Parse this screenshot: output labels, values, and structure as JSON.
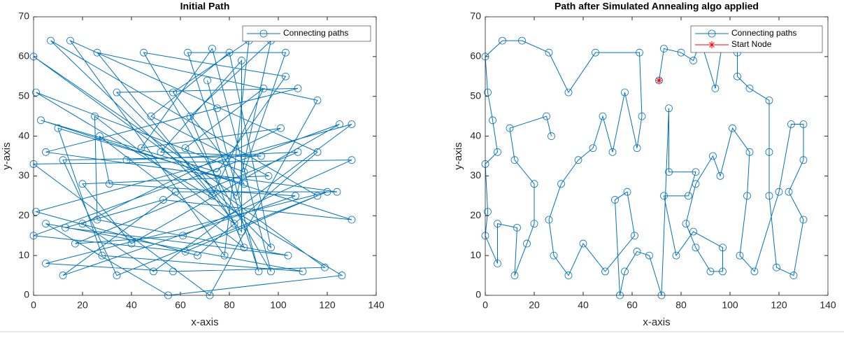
{
  "chart_data": [
    {
      "type": "line",
      "title": "Initial Path",
      "x_label": "x-axis",
      "y_label": "y-axis",
      "xlim": [
        0,
        140
      ],
      "ylim": [
        0,
        70
      ],
      "xticks": [
        0,
        20,
        40,
        60,
        80,
        100,
        120,
        140
      ],
      "yticks": [
        0,
        10,
        20,
        30,
        40,
        50,
        60,
        70
      ],
      "legend": "northeast",
      "series": [
        {
          "name": "Connecting paths",
          "color": "#0072bd",
          "marker": "circle",
          "x": [
            71,
            92,
            63,
            103,
            86,
            1,
            126,
            55,
            5,
            110,
            28,
            10,
            86,
            57,
            88,
            78,
            15,
            116,
            67,
            1,
            130,
            49,
            20,
            101,
            44,
            73,
            97,
            45,
            103,
            75,
            3,
            130,
            53,
            13,
            104,
            26,
            25,
            82,
            62,
            94,
            73,
            7,
            116,
            62,
            0,
            125,
            40,
            20,
            96,
            48,
            80,
            97,
            34,
            108,
            75,
            5,
            124,
            58,
            12,
            107,
            31,
            27,
            86,
            64,
            97,
            83,
            0,
            119,
            57,
            5,
            120,
            34,
            12,
            93,
            52,
            85,
            85,
            26,
            116,
            72,
            0,
            130,
            61,
            17,
            108,
            38
          ],
          "values": [
            54,
            6,
            61,
            61,
            31,
            51,
            5,
            0,
            18,
            6,
            10,
            42,
            28,
            51,
            64,
            10,
            64,
            36,
            10,
            21,
            43,
            6,
            18,
            42,
            37,
            62,
            6,
            61,
            55,
            31,
            44,
            19,
            24,
            17,
            10,
            19,
            45,
            18,
            37,
            52,
            25,
            64,
            25,
            11,
            15,
            43,
            13,
            28,
            30,
            45,
            61,
            12,
            51,
            52,
            47,
            36,
            26,
            26,
            5,
            25,
            28,
            40,
            12,
            45,
            64,
            25,
            60,
            7,
            6,
            8,
            26,
            5,
            34,
            35,
            36,
            59,
            16,
            61,
            49,
            0,
            33,
            34,
            15,
            13,
            36,
            34
          ]
        }
      ]
    },
    {
      "type": "line",
      "title": "Path after Simulated Annealing algo applied",
      "x_label": "x-axis",
      "y_label": "y-axis",
      "xlim": [
        0,
        140
      ],
      "ylim": [
        0,
        70
      ],
      "xticks": [
        0,
        20,
        40,
        60,
        80,
        100,
        120,
        140
      ],
      "yticks": [
        0,
        10,
        20,
        30,
        40,
        50,
        60,
        70
      ],
      "legend": "northeast",
      "series": [
        {
          "name": "Connecting paths",
          "color": "#0072bd",
          "marker": "circle",
          "x": [
            71,
            73,
            80,
            85,
            88,
            94,
            97,
            103,
            103,
            108,
            116,
            116,
            116,
            119,
            126,
            130,
            124,
            130,
            130,
            125,
            120,
            110,
            104,
            107,
            108,
            101,
            96,
            93,
            86,
            82,
            86,
            92,
            97,
            97,
            85,
            78,
            73,
            83,
            86,
            75,
            75,
            72,
            67,
            62,
            57,
            55,
            53,
            58,
            61,
            49,
            40,
            34,
            28,
            26,
            31,
            38,
            44,
            48,
            52,
            57,
            62,
            64,
            63,
            45,
            34,
            26,
            15,
            7,
            0,
            1,
            3,
            5,
            0,
            1,
            0,
            5,
            5,
            13,
            12,
            17,
            20,
            20,
            12,
            10,
            25,
            27
          ],
          "values": [
            54,
            62,
            61,
            59,
            64,
            52,
            64,
            61,
            55,
            52,
            49,
            36,
            25,
            7,
            5,
            19,
            26,
            34,
            43,
            43,
            26,
            6,
            10,
            25,
            36,
            42,
            30,
            35,
            28,
            18,
            12,
            6,
            6,
            12,
            16,
            10,
            25,
            25,
            31,
            31,
            47,
            0,
            10,
            11,
            6,
            0,
            24,
            26,
            15,
            6,
            13,
            5,
            10,
            19,
            28,
            34,
            37,
            45,
            36,
            51,
            37,
            45,
            61,
            61,
            51,
            61,
            64,
            64,
            60,
            51,
            44,
            36,
            33,
            21,
            15,
            8,
            18,
            17,
            5,
            13,
            18,
            28,
            34,
            42,
            45,
            40
          ]
        },
        {
          "name": "Start Node",
          "color": "#ff0000",
          "marker": "star",
          "x": [
            71
          ],
          "values": [
            54
          ]
        }
      ]
    }
  ]
}
